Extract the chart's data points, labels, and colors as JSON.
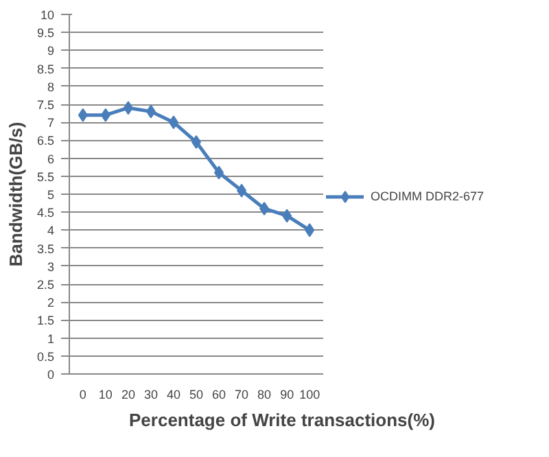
{
  "chart_data": {
    "type": "line",
    "xlabel": "Percentage of Write transactions(%)",
    "ylabel": "Bandwidth(GB/s)",
    "categories": [
      "0",
      "10",
      "20",
      "30",
      "40",
      "50",
      "60",
      "70",
      "80",
      "90",
      "100"
    ],
    "series": [
      {
        "name": "OCDIMM DDR2-677",
        "color": "#4a7ebb",
        "values": [
          7.2,
          7.2,
          7.4,
          7.3,
          7.0,
          6.45,
          5.6,
          5.1,
          4.6,
          4.4,
          4.0
        ]
      }
    ],
    "ylim": [
      0,
      10
    ],
    "yticks": [
      0,
      0.5,
      1,
      1.5,
      2,
      2.5,
      3,
      3.5,
      4,
      4.5,
      5,
      5.5,
      6,
      6.5,
      7,
      7.5,
      8,
      8.5,
      9,
      9.5,
      10
    ],
    "grid": "y",
    "legend": "right",
    "marker": "diamond",
    "line_style": "solid"
  }
}
